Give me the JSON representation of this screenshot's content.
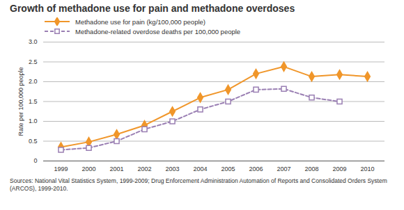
{
  "chart_data": {
    "type": "line",
    "title": "Growth of methadone use for pain and methadone overdoses",
    "y_label": "Rate per 100,000 people",
    "source": "Sources: National Vital Statistics System, 1999-2009; Drug Enforcement Administration Automation of Reports and Consolidated Orders System (ARCOS), 1999-2010.",
    "categories": [
      "1999",
      "2000",
      "2001",
      "2002",
      "2003",
      "2004",
      "2005",
      "2006",
      "2007",
      "2008",
      "2009",
      "2010"
    ],
    "series": [
      {
        "name": "Methadone use for pain (kg/100,000 people)",
        "color": "#f0962a",
        "marker": "diamond",
        "line_style": "solid",
        "values": [
          0.35,
          0.48,
          0.67,
          0.9,
          1.25,
          1.6,
          1.8,
          2.2,
          2.38,
          2.13,
          2.18,
          2.13
        ]
      },
      {
        "name": "Methadone-related overdose deaths per 100,000 people",
        "color": "#9a7fb3",
        "marker": "open_square",
        "line_style": "dashed",
        "values": [
          0.28,
          0.33,
          0.5,
          0.8,
          1.0,
          1.3,
          1.5,
          1.8,
          1.82,
          1.6,
          1.5,
          null
        ]
      }
    ],
    "ylim": [
      0,
      3
    ],
    "yticks": [
      0,
      0.5,
      {
        "value": 1,
        "label": "1.0"
      },
      1.5,
      {
        "value": 2,
        "label": "2.0"
      },
      2.5,
      {
        "value": 3,
        "label": "3.0"
      }
    ],
    "grid": true
  }
}
